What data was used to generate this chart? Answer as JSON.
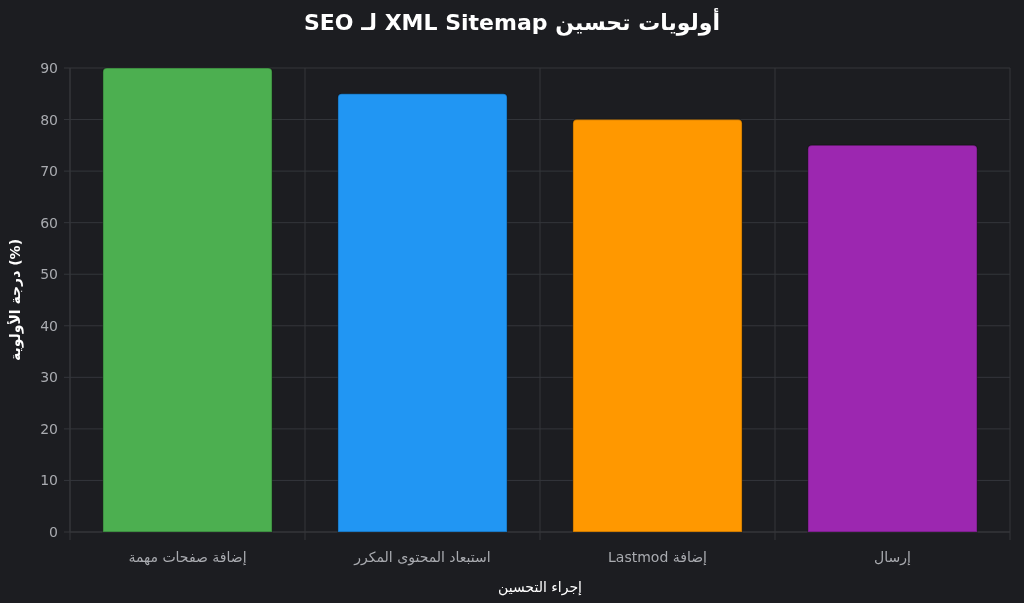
{
  "chart_data": {
    "type": "bar",
    "title": "أولويات تحسين XML Sitemap لـ SEO",
    "xlabel": "إجراء التحسين",
    "ylabel": "درجة الأولوية (%)",
    "categories": [
      "إضافة صفحات مهمة",
      "استبعاد المحتوى المكرر",
      "إضافة Lastmod",
      "إرسال"
    ],
    "values": [
      90,
      85,
      80,
      75
    ],
    "colors": [
      "#4caf50",
      "#2196f3",
      "#ff9800",
      "#9c27b0"
    ],
    "ylim": [
      0,
      90
    ],
    "yticks": [
      0,
      10,
      20,
      30,
      40,
      50,
      60,
      70,
      80,
      90
    ],
    "grid": true
  }
}
